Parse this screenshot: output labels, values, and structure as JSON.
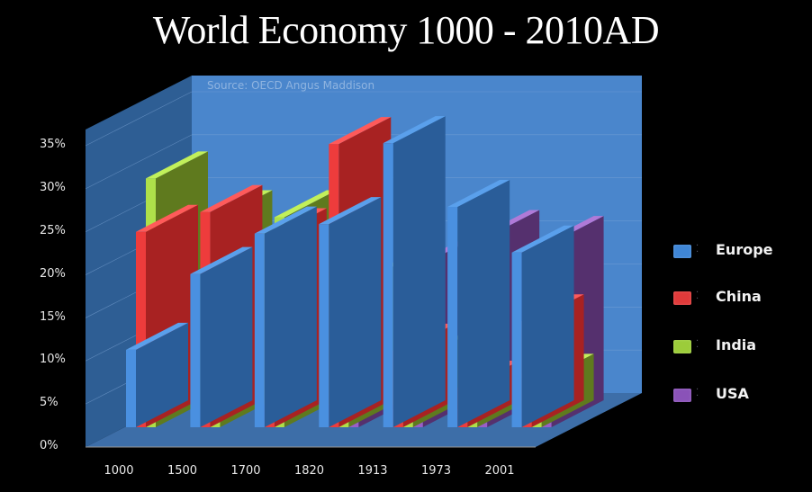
{
  "title": "World Economy  1000 - 2010AD",
  "source_note": "Source: OECD Angus Maddison",
  "y_axis": {
    "ticks": [
      "0%",
      "5%",
      "10%",
      "15%",
      "20%",
      "25%",
      "30%",
      "35%"
    ]
  },
  "x_axis": {
    "ticks": [
      "1000",
      "1500",
      "1700",
      "1820",
      "1913",
      "1973",
      "2001"
    ]
  },
  "legend": [
    {
      "label": "Europe",
      "color": "#3f86d6"
    },
    {
      "label": "China",
      "color": "#e03a3a"
    },
    {
      "label": "India",
      "color": "#9ccc3a"
    },
    {
      "label": "USA",
      "color": "#8a52b8"
    }
  ],
  "chart_data": {
    "type": "bar",
    "title": "World Economy  1000 - 2010AD",
    "subtitle": "Source: OECD Angus Maddison",
    "xlabel": "",
    "ylabel": "",
    "ylim": [
      0,
      35
    ],
    "y_tick_format": "percent",
    "grid": true,
    "legend_position": "right",
    "categories": [
      "1000",
      "1500",
      "1700",
      "1820",
      "1913",
      "1973",
      "2001"
    ],
    "series": [
      {
        "name": "Europe",
        "color": "#3f86d6",
        "values": [
          9.0,
          17.8,
          22.5,
          23.6,
          33.0,
          25.6,
          20.3
        ]
      },
      {
        "name": "China",
        "color": "#e03a3a",
        "values": [
          22.7,
          25.0,
          22.3,
          32.9,
          8.9,
          4.6,
          12.3
        ]
      },
      {
        "name": "India",
        "color": "#9ccc3a",
        "values": [
          28.9,
          24.4,
          24.4,
          16.0,
          7.5,
          3.1,
          5.4
        ]
      },
      {
        "name": "USA",
        "color": "#8a52b8",
        "values": [
          0,
          0,
          0,
          1.8,
          18.9,
          22.1,
          21.4
        ]
      }
    ]
  }
}
